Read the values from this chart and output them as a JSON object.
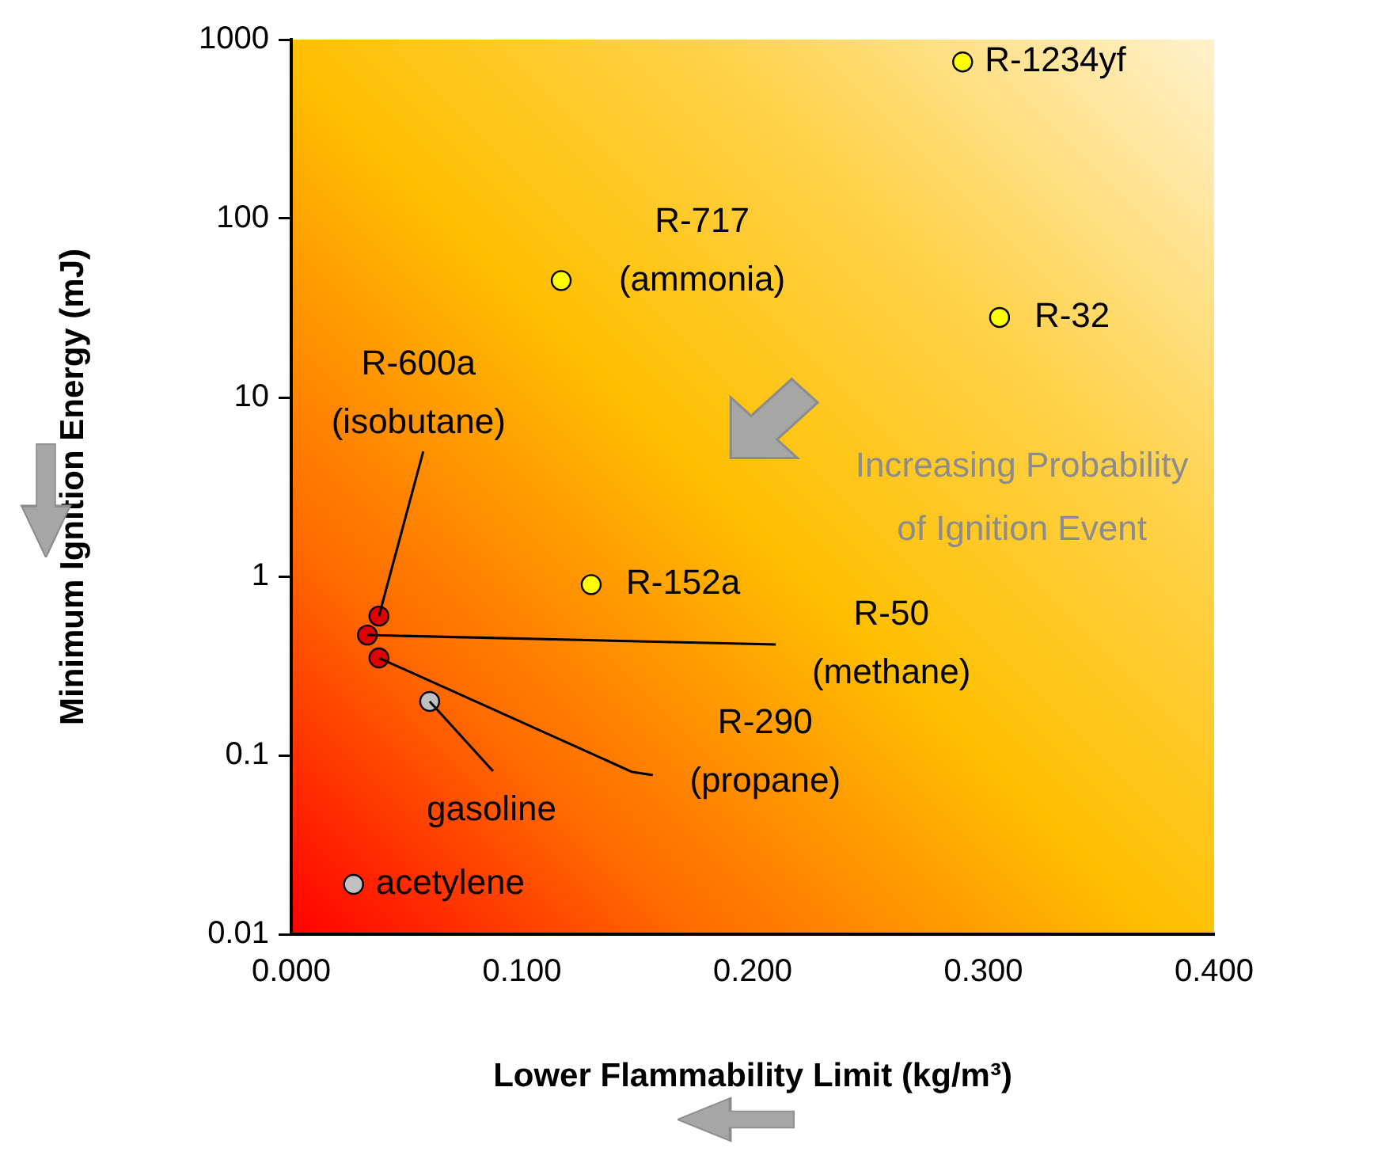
{
  "chart_data": {
    "type": "scatter",
    "xlabel": "Lower Flammability Limit (kg/m³)",
    "ylabel": "Minimum Ignition Energy (mJ)",
    "x": [
      0.291,
      0.117,
      0.307,
      0.13,
      0.038,
      0.033,
      0.038,
      0.06,
      0.027
    ],
    "values": [
      750,
      45,
      28,
      0.9,
      0.6,
      0.47,
      0.35,
      0.2,
      0.019
    ],
    "colors": [
      "#ffff00",
      "#ffff00",
      "#ffff00",
      "#ffff00",
      "#e00000",
      "#e00000",
      "#e00000",
      "#c0c0c0",
      "#c0c0c0"
    ],
    "xlim": [
      0,
      0.4
    ],
    "xticks": [
      {
        "value": 0,
        "label": "0.000"
      },
      {
        "value": 0.1,
        "label": "0.100"
      },
      {
        "value": 0.2,
        "label": "0.200"
      },
      {
        "value": 0.3,
        "label": "0.300"
      },
      {
        "value": 0.4,
        "label": "0.400"
      }
    ],
    "ylim": [
      0.01,
      1000
    ],
    "yticks": [
      0.01,
      0.1,
      1,
      10,
      100,
      1000
    ],
    "log": "y",
    "grid": false,
    "legend": false,
    "marker": "circle",
    "annotations": [
      {
        "text": "R-1234yf",
        "x": 0.291,
        "y": 750
      },
      {
        "text": "R-717\n(ammonia)",
        "x": 0.117,
        "y": 45
      },
      {
        "text": "R-32",
        "x": 0.307,
        "y": 28
      },
      {
        "text": "R-152a",
        "x": 0.13,
        "y": 0.9
      },
      {
        "text": "R-600a\n(isobutane)",
        "x": 0.038,
        "y": 0.6
      },
      {
        "text": "R-50\n(methane)",
        "x": 0.033,
        "y": 0.47
      },
      {
        "text": "R-290\n(propane)",
        "x": 0.038,
        "y": 0.35
      },
      {
        "text": "gasoline",
        "x": 0.06,
        "y": 0.2
      },
      {
        "text": "acetylene",
        "x": 0.027,
        "y": 0.019
      },
      "Increasing Probability\nof Ignition Event"
    ]
  }
}
